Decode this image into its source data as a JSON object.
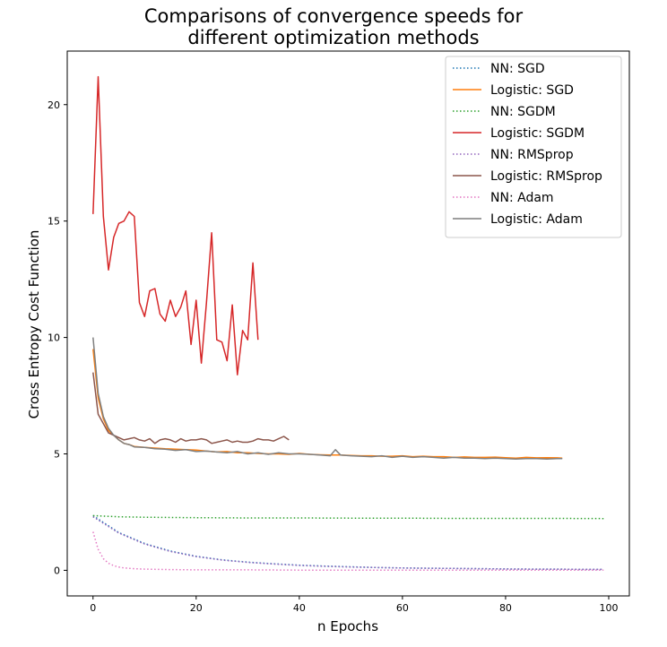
{
  "chart_data": {
    "type": "line",
    "title": "Comparisons of convergence speeds for different optimization methods",
    "title_lines": [
      "Comparisons of convergence speeds for",
      "different optimization methods"
    ],
    "xlabel": "n Epochs",
    "ylabel": "Cross Entropy Cost Function",
    "xlim": [
      -5,
      104
    ],
    "ylim": [
      -1.1,
      22.3
    ],
    "xticks": [
      0,
      20,
      40,
      60,
      80,
      100
    ],
    "yticks": [
      0,
      5,
      10,
      15,
      20
    ],
    "grid": false,
    "legend_position": "top-right",
    "series": [
      {
        "name": "NN: SGD",
        "style": "dotted",
        "color": "#1f77b4",
        "x": [
          0,
          5,
          10,
          15,
          20,
          25,
          30,
          35,
          40,
          45,
          50,
          55,
          60,
          65,
          70,
          75,
          80,
          85,
          90,
          95,
          99
        ],
        "y": [
          2.35,
          1.62,
          1.15,
          0.83,
          0.6,
          0.45,
          0.35,
          0.28,
          0.22,
          0.18,
          0.15,
          0.12,
          0.1,
          0.09,
          0.08,
          0.07,
          0.06,
          0.05,
          0.05,
          0.04,
          0.04
        ]
      },
      {
        "name": "Logistic: SGD",
        "style": "solid",
        "color": "#ff7f0e",
        "x": [
          0,
          1,
          2,
          3,
          4,
          5,
          6,
          7,
          8,
          10,
          12,
          14,
          16,
          18,
          20,
          22,
          24,
          26,
          28,
          30,
          32,
          34,
          36,
          38,
          40,
          42,
          44,
          46,
          48,
          50,
          52,
          54,
          56,
          58,
          60,
          62,
          64,
          66,
          68,
          70,
          72,
          74,
          76,
          78,
          80,
          82,
          84,
          86,
          88,
          90,
          91
        ],
        "y": [
          9.5,
          7.4,
          6.5,
          6.0,
          5.8,
          5.6,
          5.45,
          5.4,
          5.32,
          5.28,
          5.25,
          5.22,
          5.2,
          5.18,
          5.16,
          5.12,
          5.08,
          5.1,
          5.05,
          5.05,
          5.02,
          5.0,
          5.0,
          4.98,
          5.02,
          4.98,
          4.96,
          4.95,
          4.95,
          4.93,
          4.92,
          4.92,
          4.9,
          4.9,
          4.92,
          4.88,
          4.9,
          4.88,
          4.88,
          4.85,
          4.87,
          4.85,
          4.85,
          4.86,
          4.84,
          4.82,
          4.85,
          4.83,
          4.84,
          4.83,
          4.82
        ]
      },
      {
        "name": "NN: SGDM",
        "style": "dotted",
        "color": "#2ca02c",
        "x": [
          0,
          5,
          10,
          20,
          30,
          40,
          50,
          60,
          70,
          80,
          90,
          99
        ],
        "y": [
          2.35,
          2.3,
          2.28,
          2.26,
          2.25,
          2.25,
          2.24,
          2.24,
          2.23,
          2.23,
          2.23,
          2.22
        ]
      },
      {
        "name": "Logistic: SGDM",
        "style": "solid",
        "color": "#d62728",
        "x": [
          0,
          1,
          2,
          3,
          4,
          5,
          6,
          7,
          8,
          9,
          10,
          11,
          12,
          13,
          14,
          15,
          16,
          17,
          18,
          19,
          20,
          21,
          22,
          23,
          24,
          25,
          26,
          27,
          28,
          29,
          30,
          31,
          32
        ],
        "y": [
          15.3,
          21.2,
          15.2,
          12.9,
          14.3,
          14.9,
          15.0,
          15.4,
          15.2,
          11.5,
          10.9,
          12.0,
          12.1,
          11.0,
          10.7,
          11.6,
          10.9,
          11.3,
          12.0,
          9.7,
          11.6,
          8.9,
          11.5,
          14.5,
          9.9,
          9.8,
          9.0,
          11.4,
          8.4,
          10.3,
          9.9,
          13.2,
          9.9
        ]
      },
      {
        "name": "NN: RMSprop",
        "style": "dotted",
        "color": "#9467bd",
        "x": [
          0,
          5,
          10,
          15,
          20,
          25,
          30,
          35,
          40,
          45,
          50,
          55,
          60,
          65,
          70,
          75,
          80,
          85,
          90,
          95,
          99
        ],
        "y": [
          2.3,
          1.6,
          1.13,
          0.81,
          0.59,
          0.44,
          0.34,
          0.27,
          0.21,
          0.17,
          0.14,
          0.12,
          0.1,
          0.09,
          0.08,
          0.07,
          0.06,
          0.05,
          0.05,
          0.04,
          0.04
        ]
      },
      {
        "name": "Logistic: RMSprop",
        "style": "solid",
        "color": "#8c564b",
        "x": [
          0,
          1,
          2,
          3,
          4,
          5,
          6,
          7,
          8,
          9,
          10,
          11,
          12,
          13,
          14,
          15,
          16,
          17,
          18,
          19,
          20,
          21,
          22,
          23,
          24,
          25,
          26,
          27,
          28,
          29,
          30,
          31,
          32,
          33,
          34,
          35,
          36,
          37,
          38
        ],
        "y": [
          8.5,
          6.7,
          6.3,
          5.9,
          5.8,
          5.7,
          5.6,
          5.65,
          5.7,
          5.6,
          5.55,
          5.65,
          5.45,
          5.6,
          5.65,
          5.6,
          5.5,
          5.65,
          5.55,
          5.6,
          5.6,
          5.65,
          5.6,
          5.45,
          5.5,
          5.55,
          5.6,
          5.5,
          5.55,
          5.5,
          5.5,
          5.55,
          5.65,
          5.6,
          5.6,
          5.55,
          5.65,
          5.75,
          5.6
        ]
      },
      {
        "name": "NN: Adam",
        "style": "dotted",
        "color": "#e377c2",
        "x": [
          0,
          1,
          2,
          3,
          4,
          5,
          6,
          8,
          10,
          15,
          20,
          30,
          40,
          60,
          80,
          99
        ],
        "y": [
          1.65,
          0.9,
          0.5,
          0.3,
          0.2,
          0.14,
          0.1,
          0.07,
          0.05,
          0.03,
          0.02,
          0.02,
          0.01,
          0.01,
          0.01,
          0.01
        ]
      },
      {
        "name": "Logistic: Adam",
        "style": "solid",
        "color": "#7f7f7f",
        "x": [
          0,
          1,
          2,
          3,
          4,
          5,
          6,
          7,
          8,
          10,
          12,
          14,
          16,
          18,
          20,
          22,
          24,
          26,
          28,
          30,
          32,
          34,
          36,
          38,
          40,
          42,
          44,
          46,
          47,
          48,
          50,
          52,
          54,
          56,
          58,
          60,
          62,
          64,
          66,
          68,
          70,
          72,
          74,
          76,
          78,
          80,
          82,
          84,
          86,
          88,
          90,
          91
        ],
        "y": [
          10.0,
          7.6,
          6.6,
          6.1,
          5.8,
          5.6,
          5.45,
          5.4,
          5.3,
          5.28,
          5.22,
          5.2,
          5.15,
          5.18,
          5.1,
          5.12,
          5.08,
          5.05,
          5.1,
          5.0,
          5.05,
          4.98,
          5.05,
          5.0,
          5.0,
          4.98,
          4.95,
          4.92,
          5.18,
          4.95,
          4.92,
          4.9,
          4.88,
          4.92,
          4.85,
          4.9,
          4.85,
          4.88,
          4.85,
          4.82,
          4.85,
          4.82,
          4.82,
          4.8,
          4.82,
          4.8,
          4.78,
          4.8,
          4.8,
          4.78,
          4.8,
          4.8
        ]
      }
    ]
  }
}
